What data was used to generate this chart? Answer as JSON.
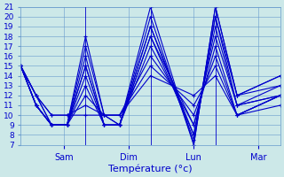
{
  "xlabel": "Température (°c)",
  "bg_color": "#cce8e8",
  "grid_color": "#6699cc",
  "line_color": "#0000cc",
  "ylim": [
    7,
    21
  ],
  "yticks": [
    7,
    8,
    9,
    10,
    11,
    12,
    13,
    14,
    15,
    16,
    17,
    18,
    19,
    20,
    21
  ],
  "xmin": 0,
  "xmax": 84,
  "xtick_positions": [
    14,
    35,
    56,
    77
  ],
  "xtick_labels": [
    "Sam",
    "Dim",
    "Lun",
    "Mar"
  ],
  "day_lines": [
    21,
    42,
    63
  ],
  "series": [
    [
      15,
      12,
      9,
      9,
      18,
      10,
      9,
      21,
      7,
      21,
      12,
      14
    ],
    [
      15,
      11,
      9,
      9,
      17,
      10,
      9,
      20,
      7,
      21,
      12,
      14
    ],
    [
      15,
      11,
      9,
      9,
      16,
      9,
      9,
      19,
      7.5,
      20,
      12,
      13
    ],
    [
      15,
      11,
      9,
      9,
      15,
      9,
      9,
      19,
      8,
      20,
      11,
      13
    ],
    [
      15,
      11,
      9,
      9,
      15,
      9,
      9,
      18,
      8,
      19,
      11,
      12
    ],
    [
      15,
      11,
      9,
      9,
      14,
      9,
      9,
      18,
      9,
      18,
      11,
      12
    ],
    [
      15,
      11,
      9,
      9,
      13,
      9,
      9,
      17,
      9,
      17,
      10,
      12
    ],
    [
      15,
      12,
      9,
      9,
      12,
      10,
      10,
      16,
      10,
      16,
      10,
      11
    ],
    [
      15,
      12,
      10,
      10,
      11,
      10,
      10,
      15,
      11,
      15,
      10,
      12
    ],
    [
      15,
      12,
      10,
      10,
      10,
      10,
      10,
      14,
      12,
      14,
      10,
      12
    ]
  ],
  "x_points": [
    0,
    5,
    10,
    15,
    21,
    27,
    32,
    42,
    56,
    63,
    70,
    84
  ]
}
